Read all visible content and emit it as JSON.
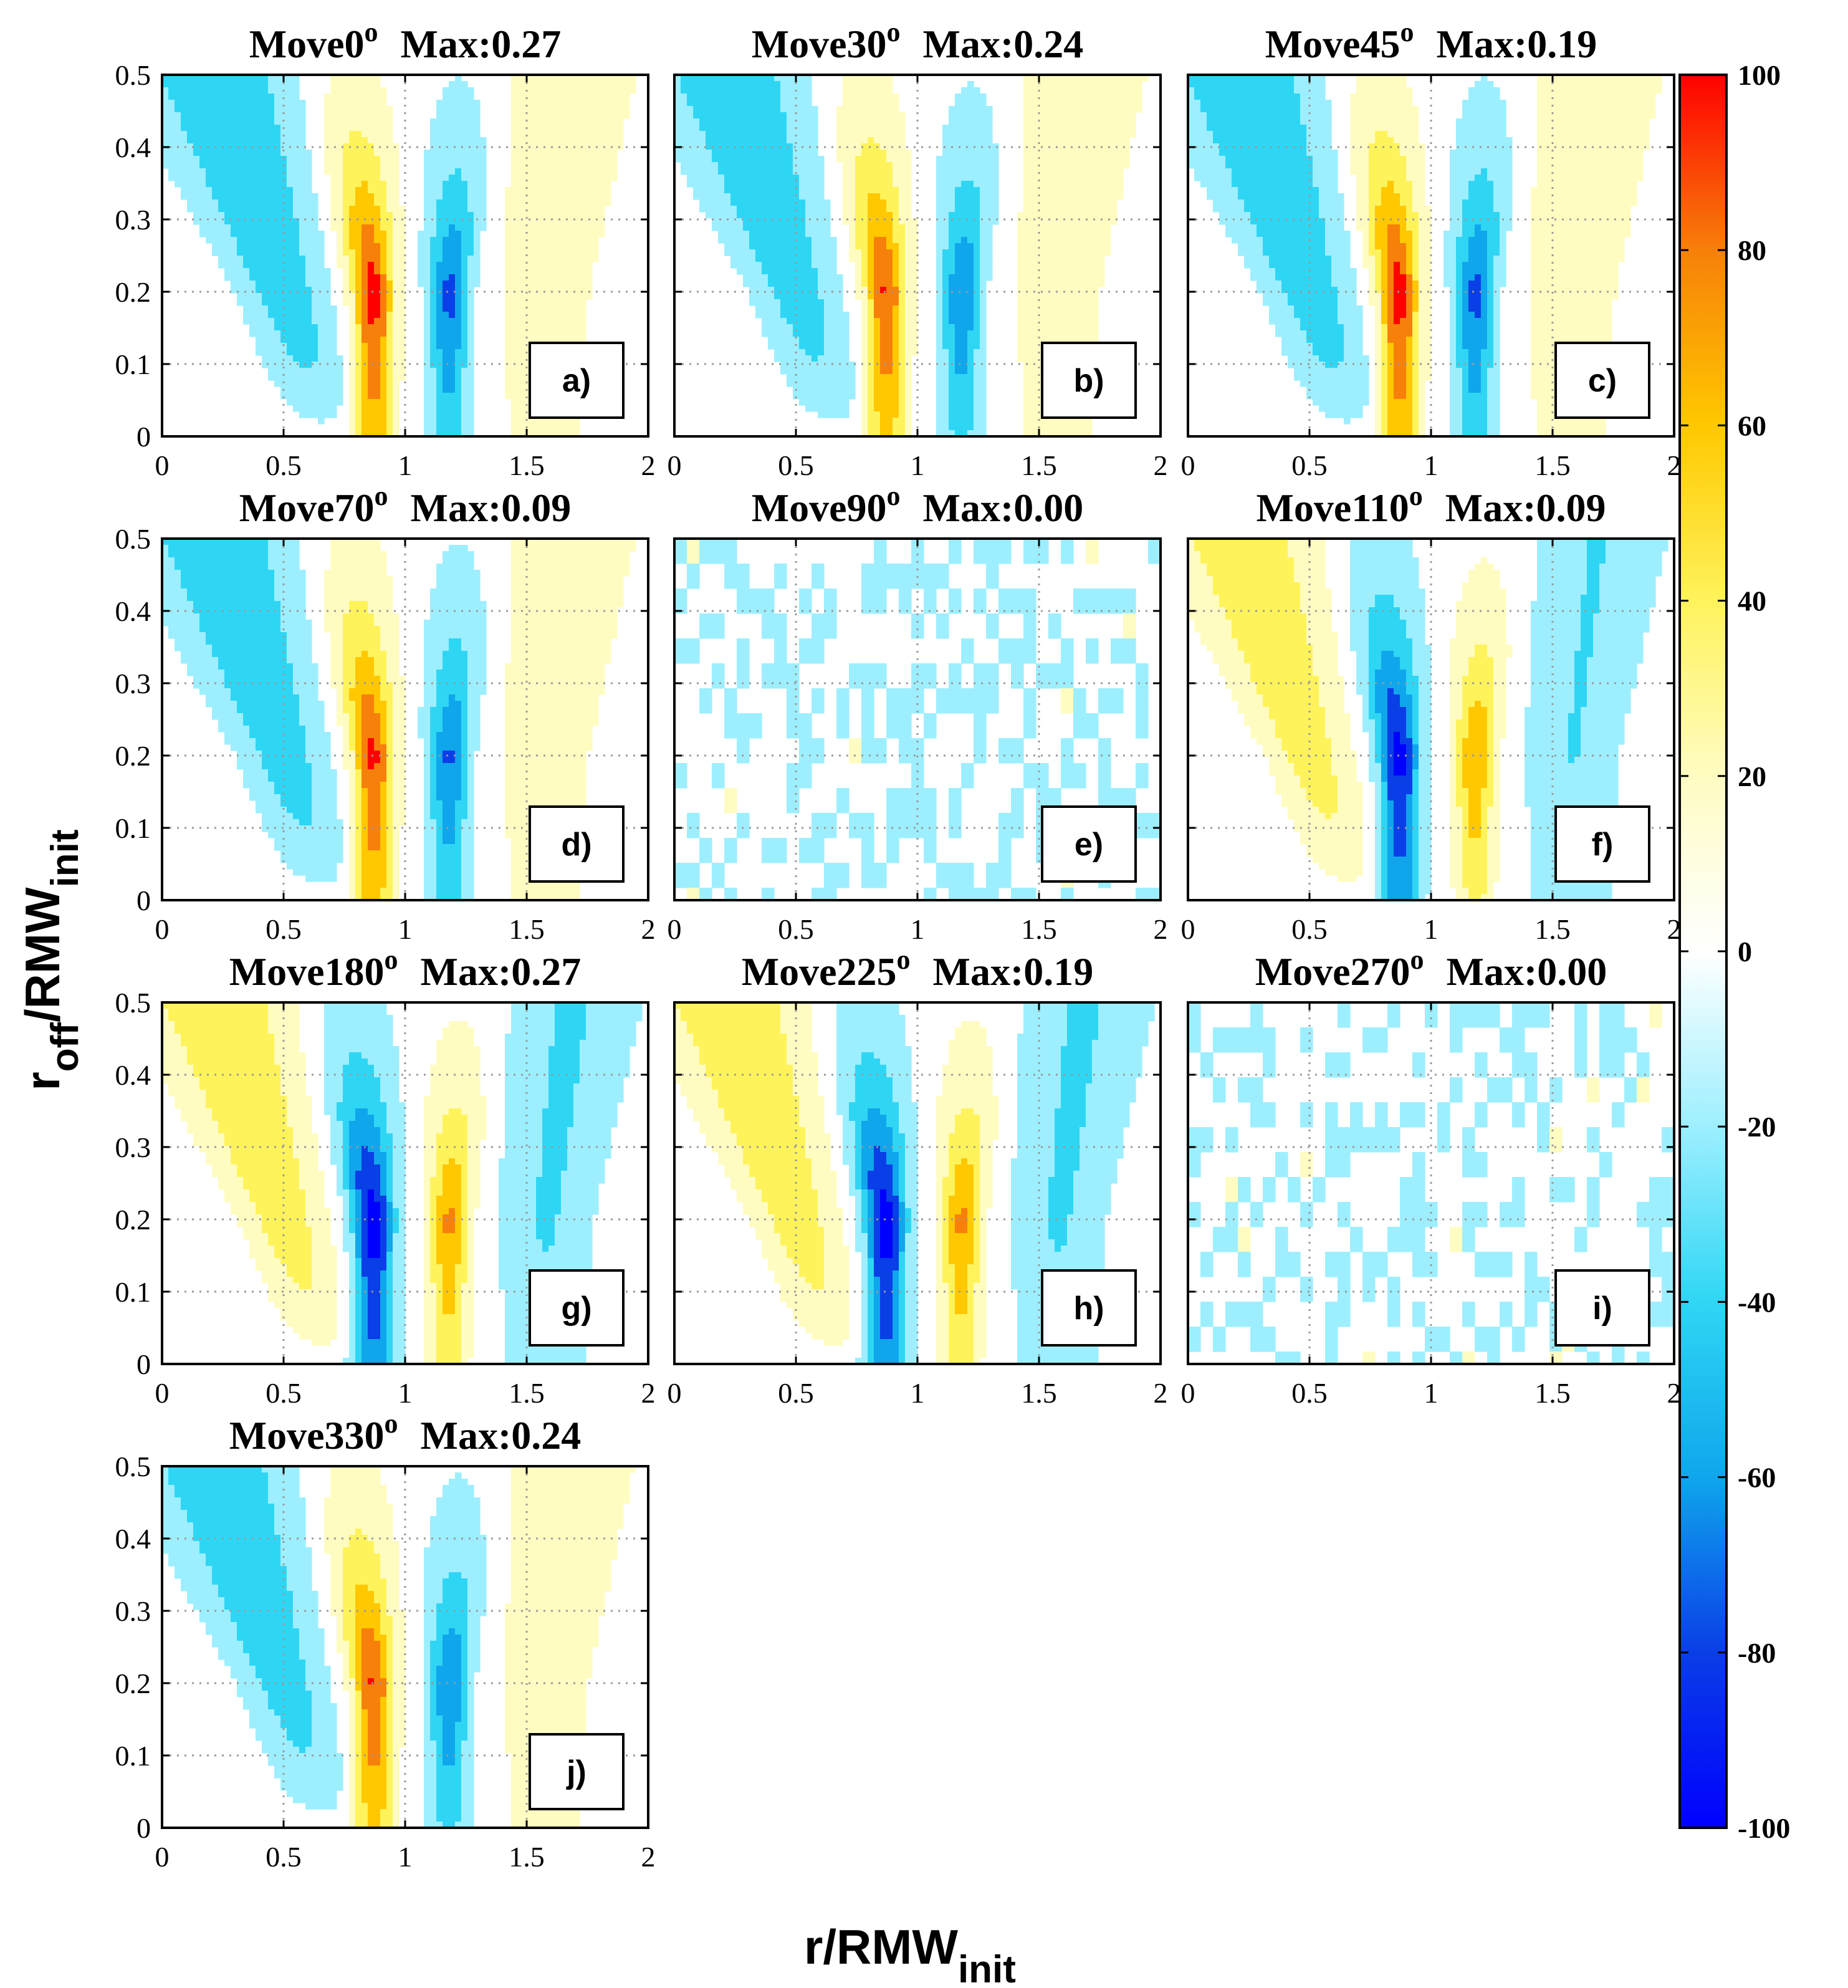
{
  "figure": {
    "xlabel": "r/RMW",
    "xlabel_sub": "init",
    "ylabel": "r",
    "ylabel_sub1": "off",
    "ylabel_mid": "/RMW",
    "ylabel_sub2": "init",
    "degree_symbol": "o"
  },
  "colorbar": {
    "min": -100,
    "max": 100,
    "ticks": [
      100,
      80,
      60,
      40,
      20,
      0,
      -20,
      -40,
      -60,
      -80,
      -100
    ],
    "tick_labels": [
      "100",
      "80",
      "60",
      "40",
      "20",
      "0",
      "-20",
      "-40",
      "-60",
      "-80",
      "-100"
    ],
    "colors": {
      "neg100": "#0000ff",
      "neg80": "#0a3ee6",
      "neg60": "#0fa6ec",
      "neg40": "#2fd6f4",
      "neg20": "#9defff",
      "zero": "#ffffff",
      "pos20": "#fffcc2",
      "pos40": "#fff35c",
      "pos60": "#ffc800",
      "pos80": "#f7800a",
      "pos100": "#ff0000"
    }
  },
  "chart_data": {
    "type": "heatmap",
    "xlim": [
      0,
      2
    ],
    "ylim": [
      0,
      0.5
    ],
    "xticks": [
      0,
      0.5,
      1,
      1.5,
      2
    ],
    "xtick_labels": [
      "0",
      "0.5",
      "1",
      "1.5",
      "2"
    ],
    "yticks": [
      0,
      0.1,
      0.2,
      0.3,
      0.4,
      0.5
    ],
    "ytick_labels": [
      "0",
      "0.1",
      "0.2",
      "0.3",
      "0.4",
      "0.5"
    ],
    "grid": true,
    "panels": [
      {
        "id": "a",
        "title_prefix": "Move0",
        "title_suffix": "Max:0.27",
        "move_angle": 0,
        "max": 0.27,
        "panel_label": "a)",
        "mode": "pattern",
        "sign": -1,
        "amplitude": 1.0
      },
      {
        "id": "b",
        "title_prefix": "Move30",
        "title_suffix": "Max:0.24",
        "move_angle": 30,
        "max": 0.24,
        "panel_label": "b)",
        "mode": "pattern",
        "sign": -1,
        "amplitude": 0.92
      },
      {
        "id": "c",
        "title_prefix": "Move45",
        "title_suffix": "Max:0.19",
        "move_angle": 45,
        "max": 0.19,
        "panel_label": "c)",
        "mode": "pattern",
        "sign": -1,
        "amplitude": 1.0
      },
      {
        "id": "d",
        "title_prefix": "Move70",
        "title_suffix": "Max:0.09",
        "move_angle": 70,
        "max": 0.09,
        "panel_label": "d)",
        "mode": "pattern",
        "sign": -1,
        "amplitude": 0.95
      },
      {
        "id": "e",
        "title_prefix": "Move90",
        "title_suffix": "Max:0.00",
        "move_angle": 90,
        "max": 0.0,
        "panel_label": "e)",
        "mode": "noise",
        "sign": 1,
        "amplitude": 0.0
      },
      {
        "id": "f",
        "title_prefix": "Move110",
        "title_suffix": "Max:0.09",
        "move_angle": 110,
        "max": 0.09,
        "panel_label": "f)",
        "mode": "pattern",
        "sign": 1,
        "amplitude": 0.95
      },
      {
        "id": "g",
        "title_prefix": "Move180",
        "title_suffix": "Max:0.27",
        "move_angle": 180,
        "max": 0.27,
        "panel_label": "g)",
        "mode": "pattern",
        "sign": 1,
        "amplitude": 1.0
      },
      {
        "id": "h",
        "title_prefix": "Move225",
        "title_suffix": "Max:0.19",
        "move_angle": 225,
        "max": 0.19,
        "panel_label": "h)",
        "mode": "pattern",
        "sign": 1,
        "amplitude": 1.0
      },
      {
        "id": "i",
        "title_prefix": "Move270",
        "title_suffix": "Max:0.00",
        "move_angle": 270,
        "max": 0.0,
        "panel_label": "i)",
        "mode": "noise",
        "sign": 1,
        "amplitude": 0.0
      },
      {
        "id": "j",
        "title_prefix": "Move330",
        "title_suffix": "Max:0.24",
        "move_angle": 330,
        "max": 0.24,
        "panel_label": "j)",
        "mode": "pattern",
        "sign": -1,
        "amplitude": 0.92
      }
    ]
  }
}
